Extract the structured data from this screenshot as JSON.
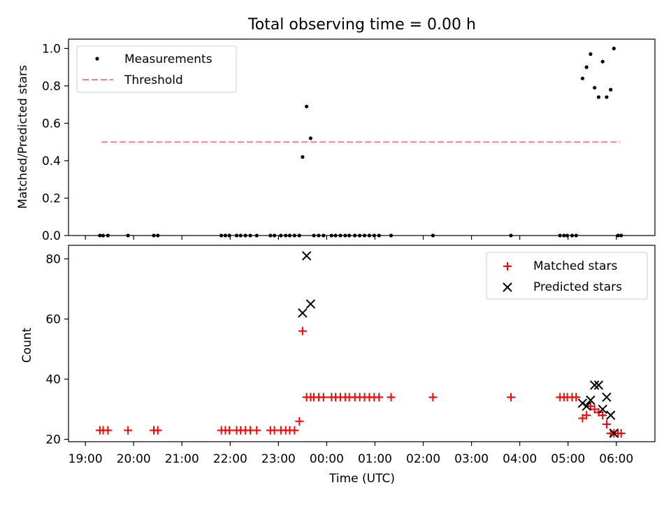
{
  "chart_data": [
    {
      "type": "scatter",
      "title": "Total observing time = 0.00 h",
      "xlabel": "",
      "ylabel": "Matched/Predicted stars",
      "xlim_hours": [
        18.65,
        30.8
      ],
      "ylim": [
        0,
        1.05
      ],
      "yticks": [
        "0.0",
        "0.2",
        "0.4",
        "0.6",
        "0.8",
        "1.0"
      ],
      "legend": {
        "placement": "top-left",
        "entries": [
          "Measurements",
          "Threshold"
        ]
      },
      "colors": {
        "measurements": "#000000",
        "threshold": "#ff7f7f"
      },
      "threshold": {
        "y": 0.5,
        "x_range": [
          "19:20",
          "06:05"
        ]
      },
      "series": [
        {
          "name": "Measurements",
          "points": [
            [
              "19:18",
              0
            ],
            [
              "19:22",
              0
            ],
            [
              "19:28",
              0
            ],
            [
              "19:53",
              0
            ],
            [
              "20:25",
              0
            ],
            [
              "20:30",
              0
            ],
            [
              "21:49",
              0
            ],
            [
              "21:54",
              0
            ],
            [
              "21:59",
              0
            ],
            [
              "22:08",
              0
            ],
            [
              "22:13",
              0
            ],
            [
              "22:19",
              0
            ],
            [
              "22:25",
              0
            ],
            [
              "22:33",
              0
            ],
            [
              "22:50",
              0
            ],
            [
              "22:55",
              0
            ],
            [
              "23:03",
              0
            ],
            [
              "23:09",
              0
            ],
            [
              "23:14",
              0
            ],
            [
              "23:20",
              0
            ],
            [
              "23:26",
              0
            ],
            [
              "23:30",
              0.42
            ],
            [
              "23:35",
              0.69
            ],
            [
              "23:40",
              0.52
            ],
            [
              "23:44",
              0
            ],
            [
              "23:50",
              0
            ],
            [
              "23:56",
              0
            ],
            [
              "00:06",
              0
            ],
            [
              "00:11",
              0
            ],
            [
              "00:17",
              0
            ],
            [
              "00:23",
              0
            ],
            [
              "00:28",
              0
            ],
            [
              "00:35",
              0
            ],
            [
              "00:41",
              0
            ],
            [
              "00:47",
              0
            ],
            [
              "00:53",
              0
            ],
            [
              "00:59",
              0
            ],
            [
              "01:05",
              0
            ],
            [
              "01:20",
              0
            ],
            [
              "02:12",
              0
            ],
            [
              "03:49",
              0
            ],
            [
              "04:50",
              0
            ],
            [
              "04:55",
              0
            ],
            [
              "04:59",
              0
            ],
            [
              "05:05",
              0
            ],
            [
              "05:10",
              0
            ],
            [
              "05:18",
              0.84
            ],
            [
              "05:23",
              0.9
            ],
            [
              "05:28",
              0.97
            ],
            [
              "05:33",
              0.79
            ],
            [
              "05:38",
              0.74
            ],
            [
              "05:43",
              0.93
            ],
            [
              "05:48",
              0.74
            ],
            [
              "05:53",
              0.78
            ],
            [
              "05:57",
              1.0
            ],
            [
              "06:02",
              0
            ],
            [
              "06:06",
              0
            ]
          ]
        }
      ]
    },
    {
      "type": "scatter",
      "title": "",
      "xlabel": "Time (UTC)",
      "ylabel": "Count",
      "xlim_hours": [
        18.65,
        30.8
      ],
      "ylim": [
        19.2,
        84.5
      ],
      "yticks": [
        "20",
        "40",
        "60",
        "80"
      ],
      "xticks": [
        "19:00",
        "20:00",
        "21:00",
        "22:00",
        "23:00",
        "00:00",
        "01:00",
        "02:00",
        "03:00",
        "04:00",
        "05:00",
        "06:00"
      ],
      "legend": {
        "placement": "top-right",
        "entries": [
          "Matched stars",
          "Predicted stars"
        ]
      },
      "colors": {
        "matched": "#ff0000",
        "predicted": "#000000"
      },
      "series": [
        {
          "name": "Matched stars",
          "points": [
            [
              "19:18",
              23
            ],
            [
              "19:22",
              23
            ],
            [
              "19:28",
              23
            ],
            [
              "19:53",
              23
            ],
            [
              "20:25",
              23
            ],
            [
              "20:30",
              23
            ],
            [
              "21:49",
              23
            ],
            [
              "21:54",
              23
            ],
            [
              "21:59",
              23
            ],
            [
              "22:08",
              23
            ],
            [
              "22:13",
              23
            ],
            [
              "22:19",
              23
            ],
            [
              "22:25",
              23
            ],
            [
              "22:33",
              23
            ],
            [
              "22:50",
              23
            ],
            [
              "22:55",
              23
            ],
            [
              "23:03",
              23
            ],
            [
              "23:09",
              23
            ],
            [
              "23:14",
              23
            ],
            [
              "23:20",
              23
            ],
            [
              "23:26",
              26
            ],
            [
              "23:30",
              56
            ],
            [
              "23:35",
              34
            ],
            [
              "23:40",
              34
            ],
            [
              "23:44",
              34
            ],
            [
              "23:50",
              34
            ],
            [
              "23:56",
              34
            ],
            [
              "00:06",
              34
            ],
            [
              "00:11",
              34
            ],
            [
              "00:17",
              34
            ],
            [
              "00:23",
              34
            ],
            [
              "00:28",
              34
            ],
            [
              "00:35",
              34
            ],
            [
              "00:41",
              34
            ],
            [
              "00:47",
              34
            ],
            [
              "00:53",
              34
            ],
            [
              "00:59",
              34
            ],
            [
              "01:05",
              34
            ],
            [
              "01:20",
              34
            ],
            [
              "02:12",
              34
            ],
            [
              "03:49",
              34
            ],
            [
              "04:50",
              34
            ],
            [
              "04:55",
              34
            ],
            [
              "04:59",
              34
            ],
            [
              "05:05",
              34
            ],
            [
              "05:10",
              34
            ],
            [
              "05:18",
              27
            ],
            [
              "05:23",
              28
            ],
            [
              "05:28",
              31
            ],
            [
              "05:33",
              30
            ],
            [
              "05:38",
              29
            ],
            [
              "05:43",
              28
            ],
            [
              "05:48",
              25
            ],
            [
              "05:53",
              22
            ],
            [
              "05:57",
              22
            ],
            [
              "06:02",
              22
            ],
            [
              "06:06",
              22
            ]
          ]
        },
        {
          "name": "Predicted stars",
          "points": [
            [
              "23:30",
              62
            ],
            [
              "23:35",
              81
            ],
            [
              "23:40",
              65
            ],
            [
              "05:18",
              32
            ],
            [
              "05:23",
              31
            ],
            [
              "05:28",
              33
            ],
            [
              "05:33",
              38
            ],
            [
              "05:38",
              38
            ],
            [
              "05:43",
              30
            ],
            [
              "05:48",
              34
            ],
            [
              "05:53",
              28
            ],
            [
              "05:57",
              22
            ]
          ]
        }
      ]
    }
  ]
}
